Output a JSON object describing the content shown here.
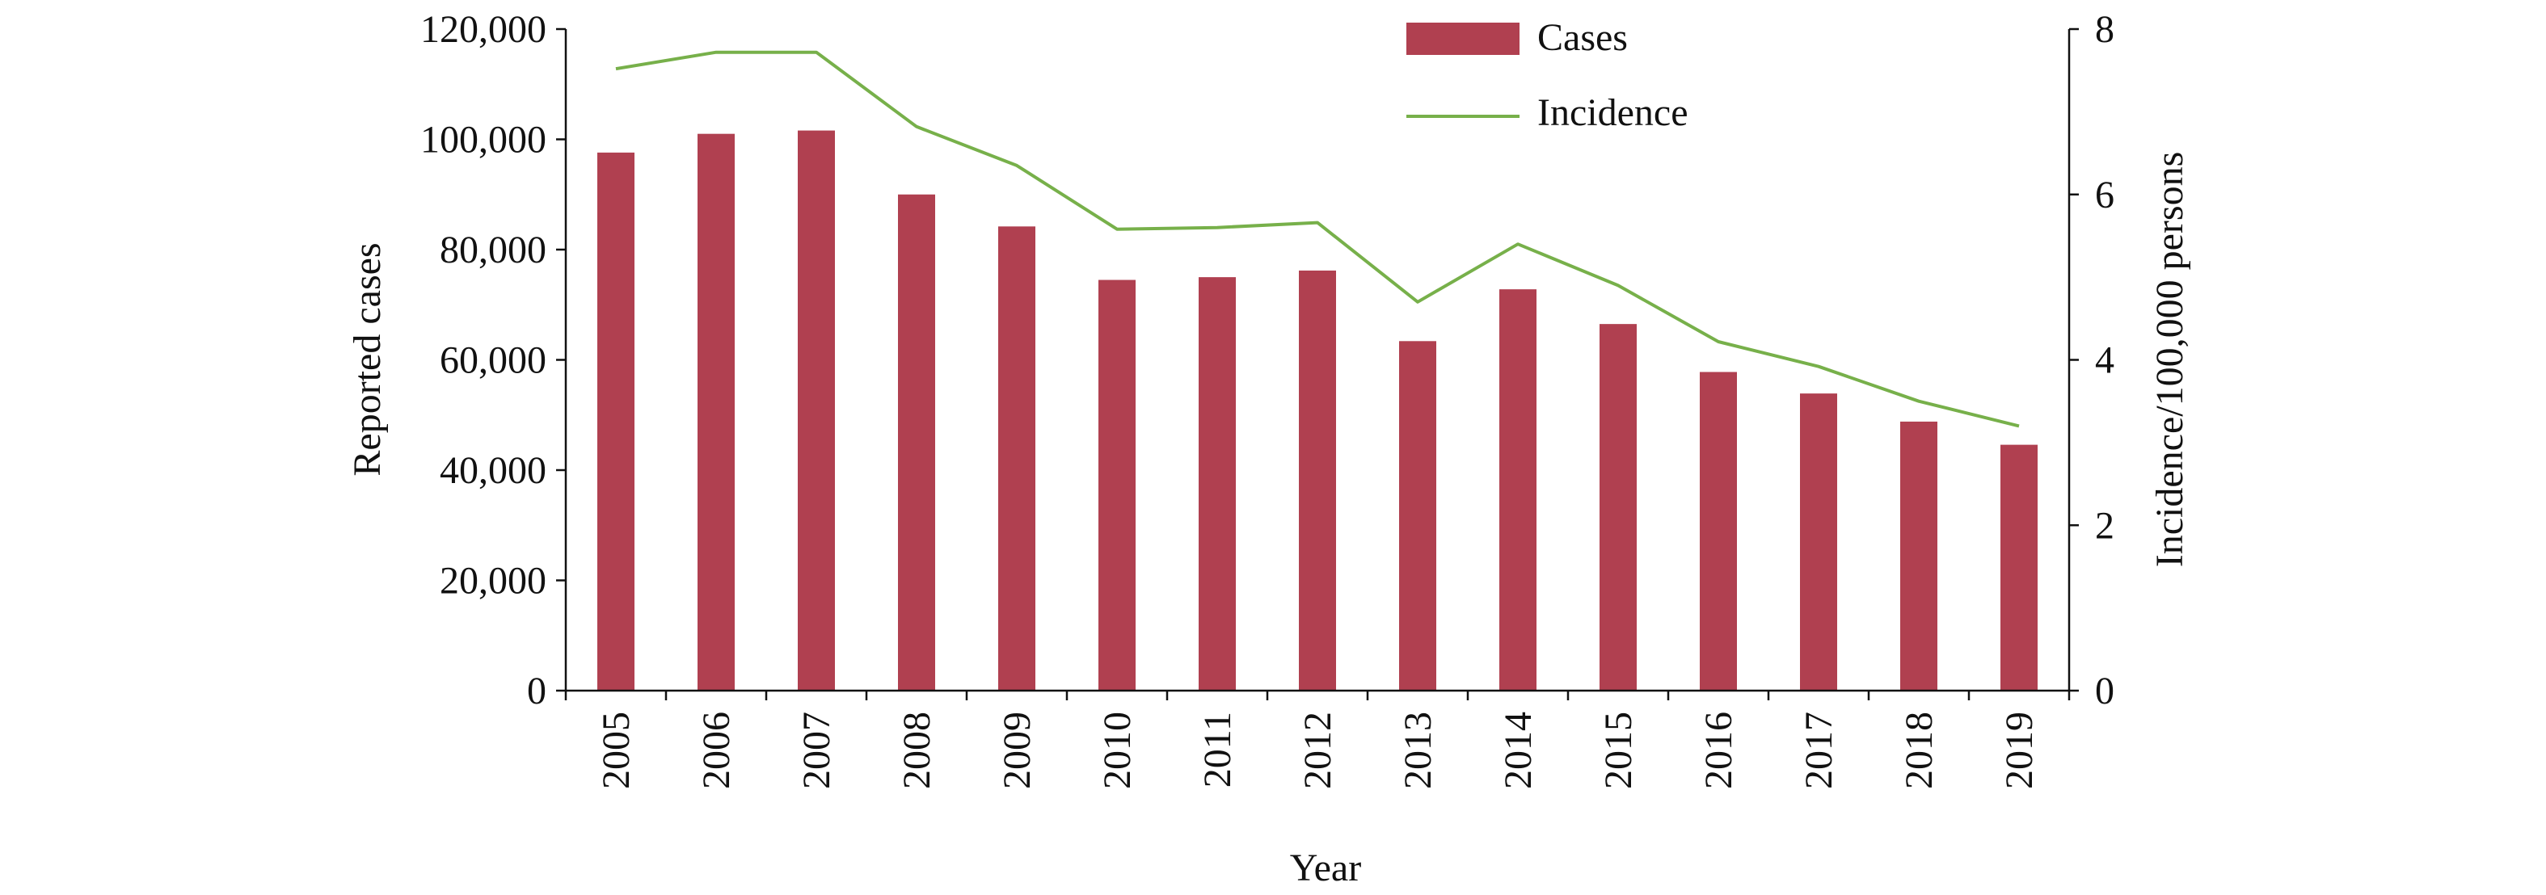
{
  "chart_data": {
    "type": "bar",
    "categories": [
      "2005",
      "2006",
      "2007",
      "2008",
      "2009",
      "2010",
      "2011",
      "2012",
      "2013",
      "2014",
      "2015",
      "2016",
      "2017",
      "2018",
      "2019"
    ],
    "series": [
      {
        "name": "Cases",
        "type": "bar",
        "axis": "left",
        "color": "#B04050",
        "values": [
          97600,
          101000,
          101600,
          90000,
          84200,
          74500,
          75000,
          76200,
          63400,
          72800,
          66500,
          57800,
          53900,
          48800,
          44600
        ]
      },
      {
        "name": "Incidence",
        "type": "line",
        "axis": "right",
        "color": "#77B04A",
        "values": [
          7.52,
          7.72,
          7.72,
          6.82,
          6.35,
          5.58,
          5.6,
          5.66,
          4.7,
          5.4,
          4.9,
          4.22,
          3.92,
          3.5,
          3.2
        ]
      }
    ],
    "xlabel": "Year",
    "ylabel": "Reported cases",
    "y2label": "Incidence/100,000 persons",
    "ylim": [
      0,
      120000
    ],
    "y2lim": [
      0,
      8
    ],
    "yticks": [
      0,
      20000,
      40000,
      60000,
      80000,
      100000,
      120000
    ],
    "yticklabels": [
      "0",
      "20,000",
      "40,000",
      "60,000",
      "80,000",
      "100,000",
      "120,000"
    ],
    "y2ticks": [
      0,
      2,
      4,
      6,
      8
    ],
    "y2ticklabels": [
      "0",
      "2",
      "4",
      "6",
      "8"
    ],
    "grid": false,
    "legend_position": "top-center"
  }
}
